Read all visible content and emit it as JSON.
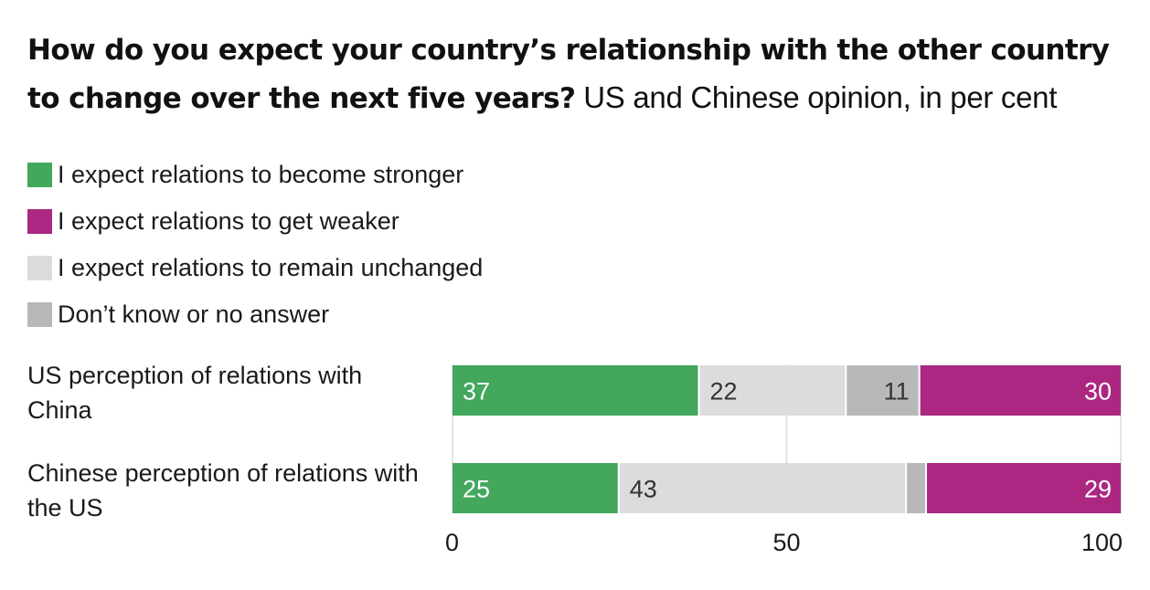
{
  "chart_data": {
    "type": "bar",
    "orientation": "horizontal",
    "stacked": true,
    "title": "How do you expect your country’s relationship with the other country to change over the next five years?",
    "subtitle": "US and Chinese opinion, in per cent",
    "categories": [
      "US perception of relations with China",
      "Chinese perception of relations with the US"
    ],
    "series": [
      {
        "name": "I expect relations to become stronger",
        "color": "#43a75c",
        "values": [
          37,
          25
        ],
        "labels": [
          "37",
          "25"
        ],
        "label_color": "#ffffff"
      },
      {
        "name": "I expect relations to remain unchanged",
        "color": "#dcdcdc",
        "values": [
          22,
          43
        ],
        "labels": [
          "22",
          "43"
        ],
        "label_color": "#333333"
      },
      {
        "name": "Don’t know or no answer",
        "color": "#b8b8b8",
        "values": [
          11,
          3
        ],
        "labels": [
          "11",
          ""
        ],
        "label_color": "#333333"
      },
      {
        "name": "I expect relations to get weaker",
        "color": "#ab2782",
        "values": [
          30,
          29
        ],
        "labels": [
          "30",
          "29"
        ],
        "label_color": "#ffffff"
      }
    ],
    "legend": [
      {
        "name": "I expect relations to become stronger",
        "color": "#43a75c"
      },
      {
        "name": "I expect relations to get weaker",
        "color": "#ab2782"
      },
      {
        "name": "I expect relations to remain unchanged",
        "color": "#dcdcdc"
      },
      {
        "name": "Don’t know or no answer",
        "color": "#b8b8b8"
      }
    ],
    "xlim": [
      0,
      100
    ],
    "xticks": [
      0,
      50,
      100
    ],
    "grid": true,
    "legend_position": "top-left"
  }
}
